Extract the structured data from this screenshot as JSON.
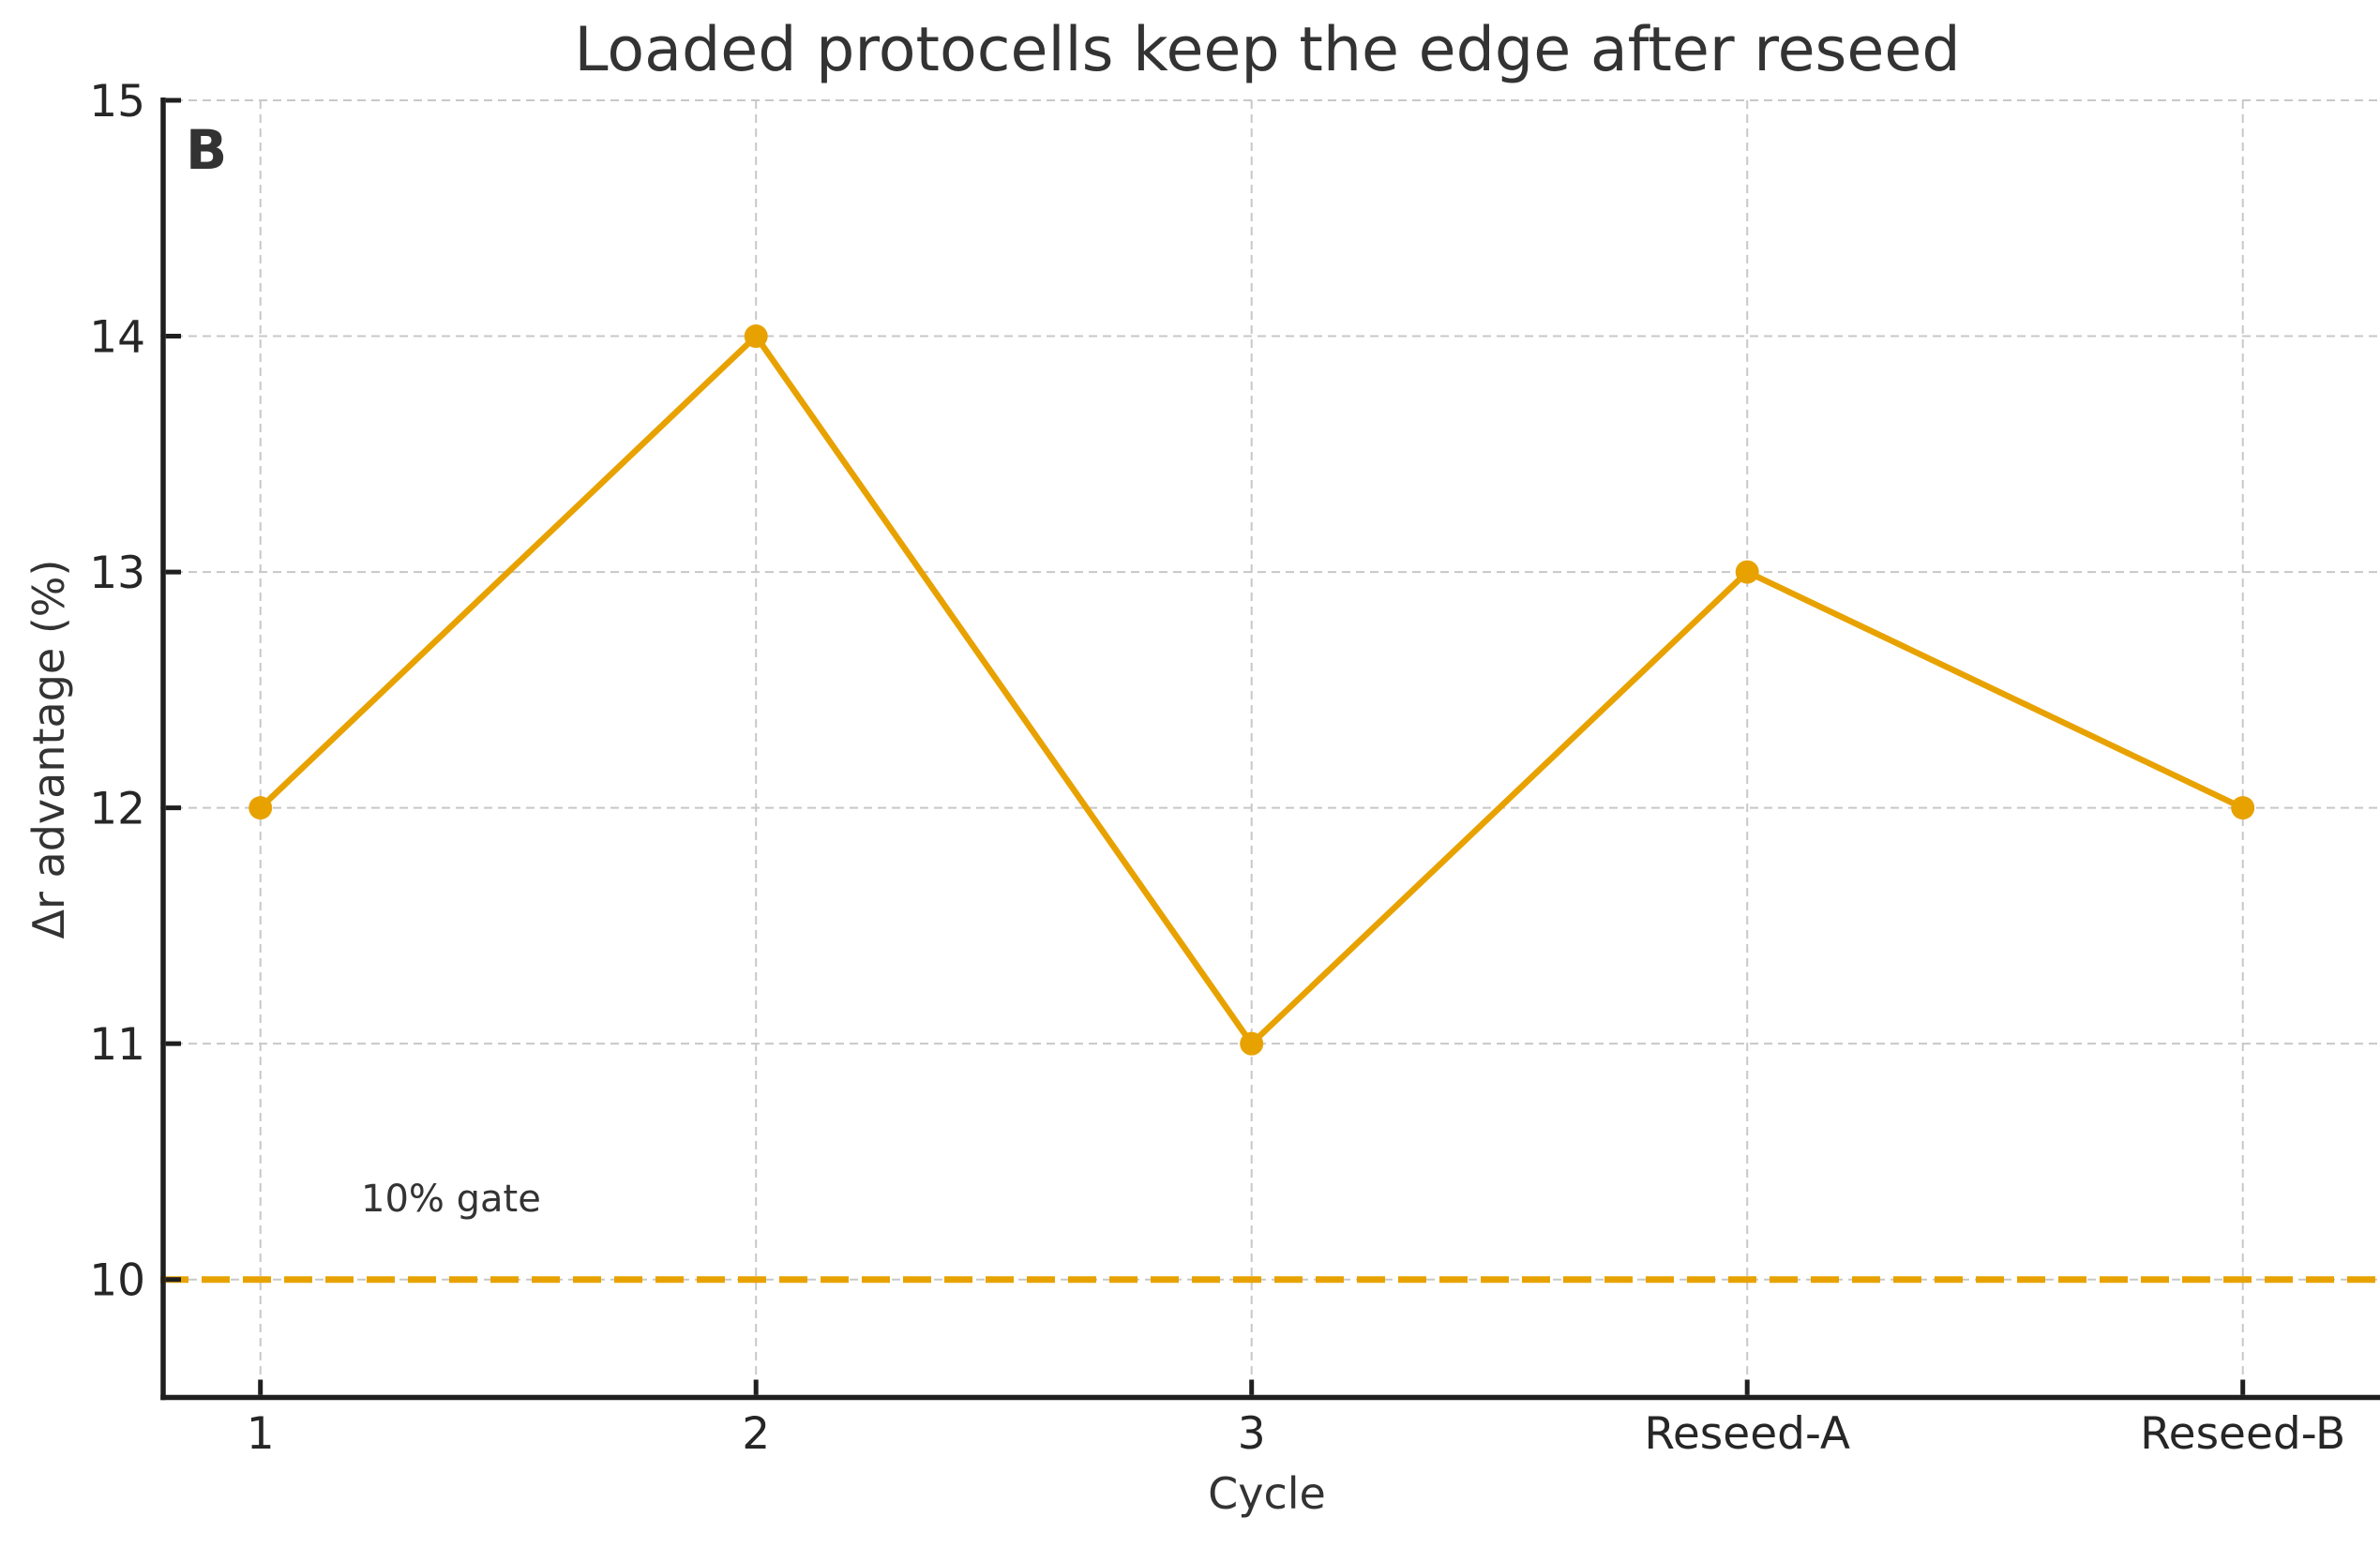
{
  "panel_label": "B",
  "chart_data": {
    "type": "line",
    "title": "Loaded protocells keep the edge after reseed",
    "xlabel": "Cycle",
    "ylabel": "Δr advantage (%)",
    "categories": [
      "1",
      "2",
      "3",
      "Reseed-A",
      "Reseed-B"
    ],
    "values": [
      12,
      14,
      11,
      13,
      12
    ],
    "yticks": [
      10,
      11,
      12,
      13,
      14,
      15
    ],
    "ylim": [
      9.5,
      15
    ],
    "grid": true,
    "legend_position": "none",
    "reference_line": {
      "value": 10,
      "label": "10% gate",
      "style": "dashed"
    },
    "colors": {
      "series": "#E8A200",
      "reference": "#E8A200",
      "grid": "#c8c8c8",
      "spine": "#1f1f1f",
      "tick_label": "#262626",
      "text": "#333333",
      "background": "#ffffff"
    }
  }
}
